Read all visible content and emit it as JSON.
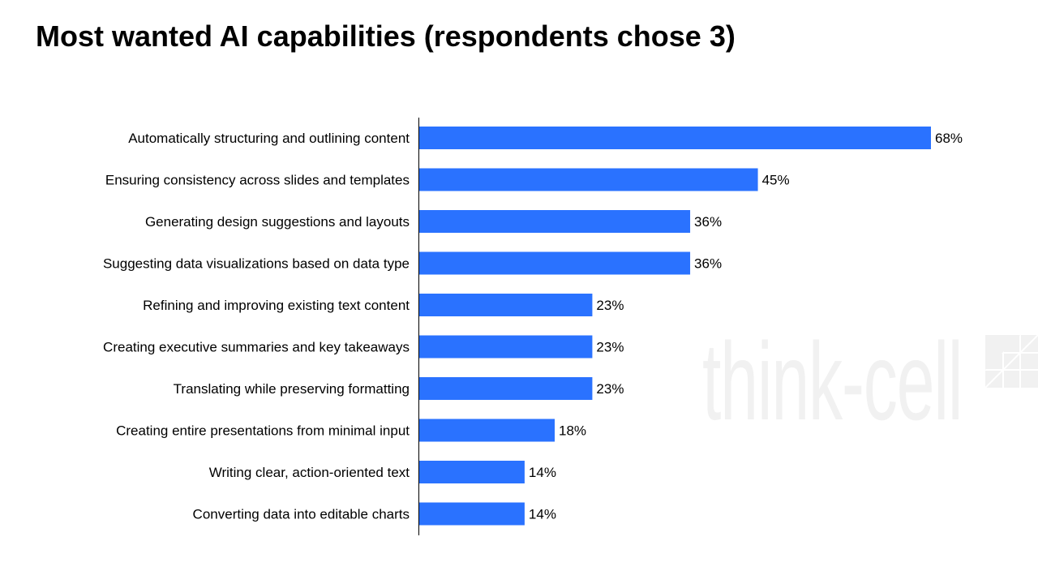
{
  "title": "Most wanted AI capabilities (respondents chose 3)",
  "watermark": "think-cell",
  "colors": {
    "bar": "#2A72FF",
    "axis": "#000000",
    "watermark": "#F1F1F1"
  },
  "chart_data": {
    "type": "bar",
    "orientation": "horizontal",
    "title": "Most wanted AI capabilities (respondents chose 3)",
    "xlabel": "",
    "ylabel": "",
    "unit": "%",
    "xlim": [
      0,
      68
    ],
    "grid": false,
    "categories": [
      "Automatically structuring and outlining content",
      "Ensuring consistency across slides and templates",
      "Generating design suggestions and layouts",
      "Suggesting data visualizations based on data type",
      "Refining and improving existing text content",
      "Creating executive summaries and key takeaways",
      "Translating while preserving formatting",
      "Creating entire presentations from minimal input",
      "Writing clear, action-oriented text",
      "Converting data into editable charts"
    ],
    "values": [
      68,
      45,
      36,
      36,
      23,
      23,
      23,
      18,
      14,
      14
    ],
    "data_labels": [
      "68%",
      "45%",
      "36%",
      "36%",
      "23%",
      "23%",
      "23%",
      "18%",
      "14%",
      "14%"
    ]
  }
}
